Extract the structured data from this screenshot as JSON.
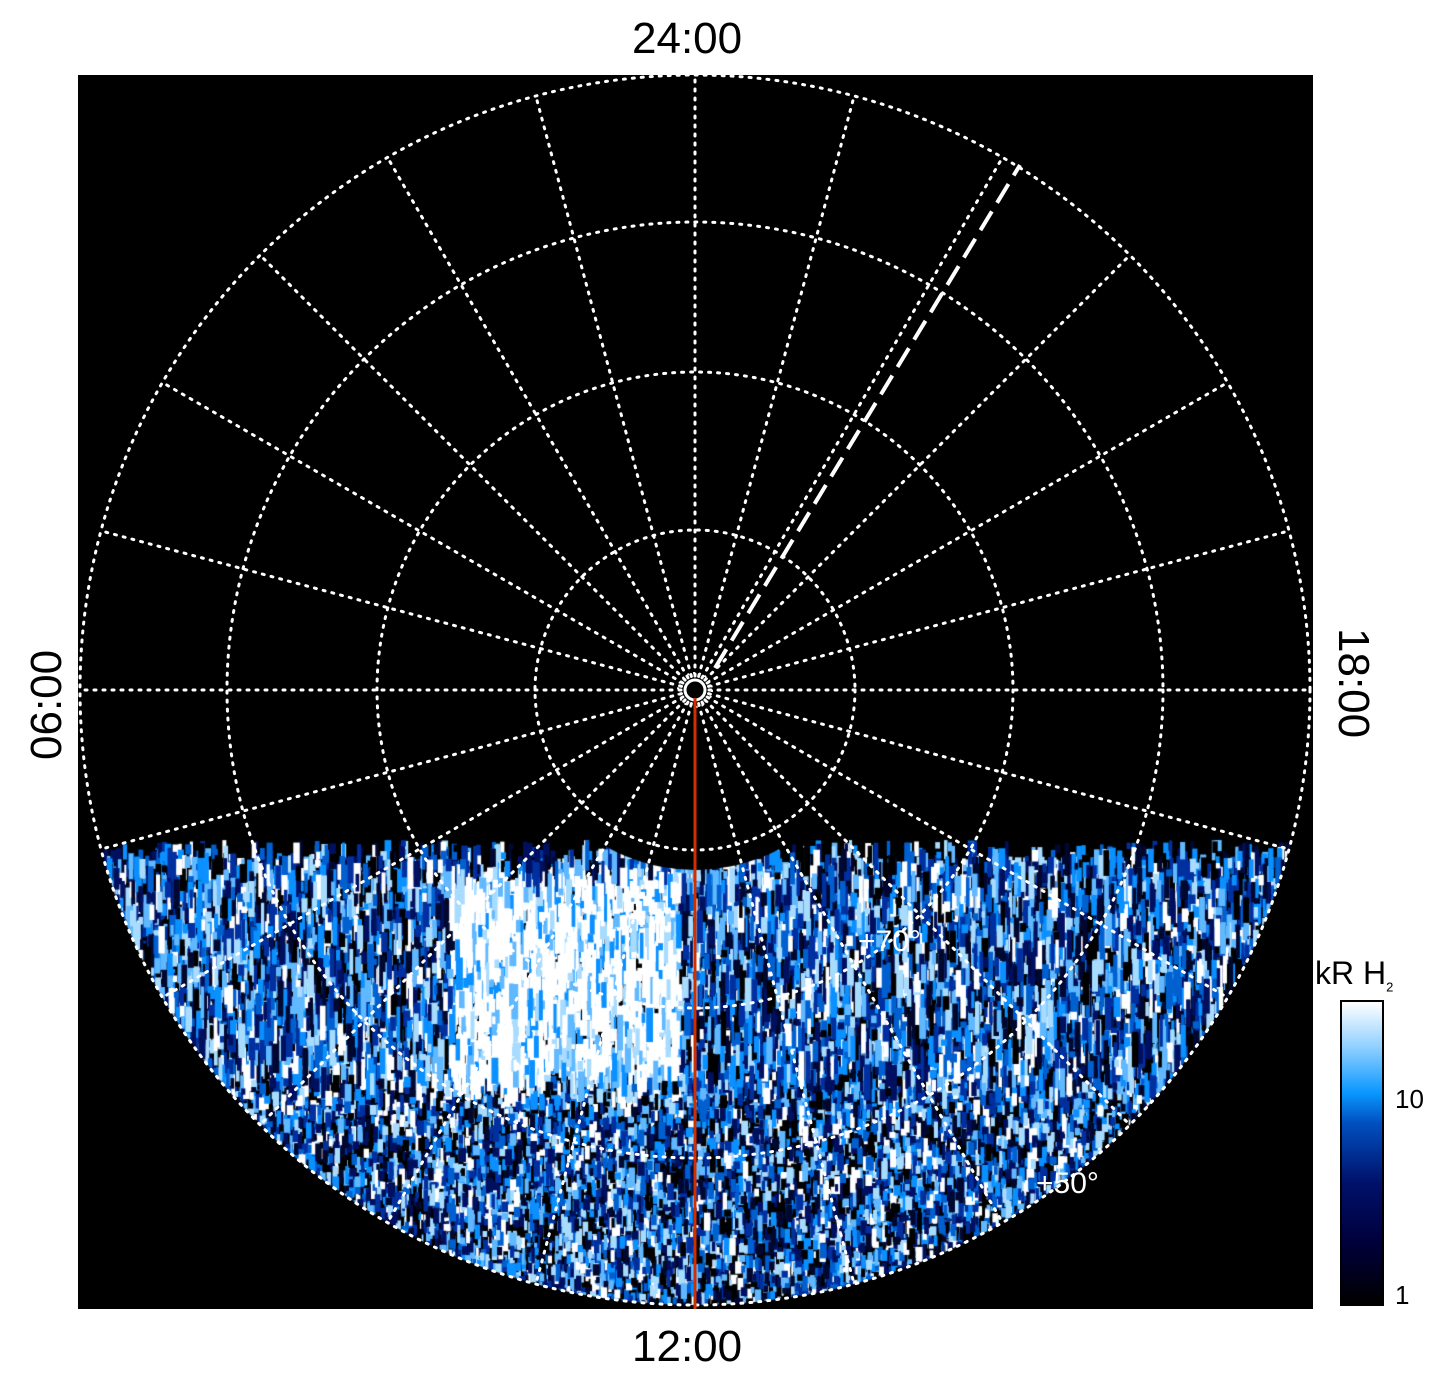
{
  "chart_data": {
    "type": "heatmap",
    "projection": "polar",
    "local_time_labels": {
      "top": "24:00",
      "bottom": "12:00",
      "left": "06:00",
      "right": "18:00"
    },
    "latitude_labels": [
      "+70°",
      "+50°"
    ],
    "latitude_circles_deg": [
      80,
      70,
      60,
      50
    ],
    "meridian_spacing_hours": 1,
    "grid": "dotted white",
    "background": "#000000",
    "red_line_local_time": "12:00",
    "colorbar": {
      "title": "kR H",
      "title_subscript": "2",
      "scale": "log",
      "range": [
        1,
        30
      ],
      "ticks": [
        "1",
        "10"
      ],
      "colors": [
        "#000000",
        "#00106a",
        "#0a98ff",
        "#ffffff"
      ],
      "placement": "right"
    },
    "markers": {
      "red_line_color": "#d03000",
      "dashed_line_color": "#ffffff"
    }
  }
}
